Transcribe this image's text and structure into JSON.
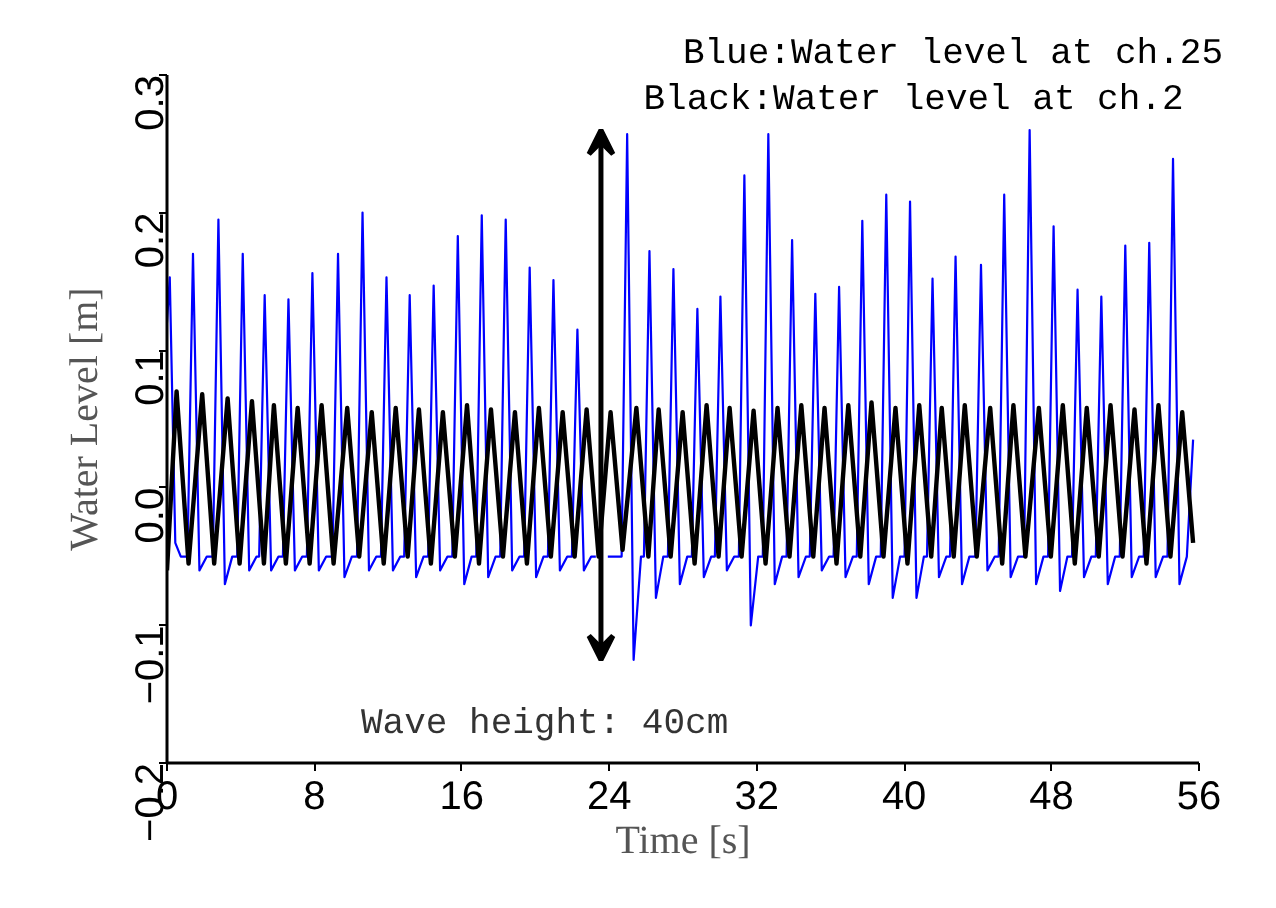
{
  "chart_data": {
    "type": "line",
    "xlabel": "Time [s]",
    "ylabel": "Water Level [m]",
    "annotations": [
      "Blue:Water level at ch.25",
      "Black:Water level at ch.2",
      "Wave height: 40cm"
    ],
    "xlim": [
      0,
      56
    ],
    "xticks": [
      0,
      8,
      16,
      24,
      32,
      40,
      48,
      56
    ],
    "ylim": [
      -0.2,
      0.3
    ],
    "yticks": [
      {
        "value": -0.2,
        "label": "−0.2"
      },
      {
        "value": -0.1,
        "label": "−0.1"
      },
      {
        "value": 0,
        "label": "0.0"
      },
      0.1,
      0.2,
      0.3
    ],
    "grid": false,
    "marker": "none",
    "line_style": "solid",
    "series": [
      {
        "color": "#0000ff",
        "x": [
          0,
          0.15,
          0.45,
          0.75,
          1.11,
          1.41,
          1.76,
          2.16,
          2.49,
          2.79,
          3.14,
          3.54,
          3.81,
          4.11,
          4.46,
          4.86,
          5.0,
          5.3,
          5.65,
          6.05,
          6.29,
          6.59,
          6.94,
          7.34,
          7.59,
          7.89,
          8.24,
          8.64,
          8.98,
          9.28,
          9.63,
          10.03,
          10.31,
          10.61,
          10.96,
          11.36,
          11.61,
          11.91,
          12.26,
          12.66,
          12.87,
          13.17,
          13.52,
          13.92,
          14.17,
          14.47,
          14.82,
          15.22,
          15.48,
          15.78,
          16.13,
          16.53,
          16.78,
          17.08,
          17.43,
          17.83,
          18.08,
          18.38,
          18.73,
          19.13,
          19.38,
          19.68,
          20.03,
          20.43,
          20.67,
          20.97,
          21.32,
          21.72,
          21.97,
          22.27,
          22.62,
          23.02,
          23.27,
          23.57,
          23.92,
          24.32,
          24.67,
          24.97,
          25.32,
          25.72,
          25.88,
          26.18,
          26.53,
          26.93,
          27.18,
          27.48,
          27.83,
          28.23,
          28.48,
          28.78,
          29.13,
          29.53,
          29.73,
          30.03,
          30.38,
          30.78,
          31.03,
          31.33,
          31.68,
          32.08,
          32.33,
          32.63,
          32.98,
          33.38,
          33.62,
          33.92,
          34.27,
          34.67,
          34.88,
          35.18,
          35.53,
          35.93,
          36.17,
          36.47,
          36.82,
          37.22,
          37.43,
          37.73,
          38.08,
          38.48,
          38.73,
          39.03,
          39.38,
          39.78,
          40.02,
          40.32,
          40.67,
          41.07,
          41.24,
          41.54,
          41.89,
          42.29,
          42.49,
          42.79,
          43.14,
          43.54,
          43.87,
          44.17,
          44.52,
          44.92,
          45.13,
          45.43,
          45.78,
          46.18,
          46.51,
          46.81,
          47.16,
          47.56,
          47.81,
          48.11,
          48.46,
          48.86,
          49.11,
          49.41,
          49.76,
          50.16,
          50.4,
          50.7,
          51.05,
          51.45,
          51.7,
          52.0,
          52.35,
          52.75,
          53.0,
          53.3,
          53.65,
          54.05,
          54.29,
          54.59,
          54.94,
          55.34,
          55.68
        ],
        "values": [
          0.12,
          0.153,
          -0.04,
          -0.05,
          -0.05,
          0.17,
          -0.06,
          -0.05,
          -0.05,
          0.195,
          -0.07,
          -0.05,
          -0.05,
          0.17,
          -0.06,
          -0.05,
          -0.05,
          0.14,
          -0.06,
          -0.05,
          -0.05,
          0.137,
          -0.06,
          -0.05,
          -0.05,
          0.156,
          -0.06,
          -0.05,
          -0.05,
          0.17,
          -0.065,
          -0.05,
          -0.05,
          0.2,
          -0.06,
          -0.05,
          -0.05,
          0.153,
          -0.06,
          -0.05,
          -0.05,
          0.14,
          -0.065,
          -0.05,
          -0.05,
          0.147,
          -0.06,
          -0.05,
          -0.05,
          0.183,
          -0.07,
          -0.05,
          -0.05,
          0.198,
          -0.065,
          -0.05,
          -0.05,
          0.195,
          -0.06,
          -0.05,
          -0.05,
          0.16,
          -0.065,
          -0.05,
          -0.05,
          0.151,
          -0.06,
          -0.05,
          -0.05,
          0.115,
          -0.06,
          -0.05,
          -0.05,
          null,
          -0.05,
          -0.05,
          -0.05,
          0.257,
          -0.125,
          -0.05,
          -0.05,
          0.172,
          -0.08,
          -0.05,
          -0.05,
          0.159,
          -0.07,
          -0.05,
          -0.05,
          0.13,
          -0.065,
          -0.05,
          -0.05,
          0.139,
          -0.06,
          -0.05,
          -0.05,
          0.227,
          -0.1,
          -0.05,
          -0.05,
          0.257,
          -0.07,
          -0.05,
          -0.05,
          0.18,
          -0.065,
          -0.05,
          -0.05,
          0.141,
          -0.06,
          -0.05,
          -0.05,
          0.146,
          -0.065,
          -0.05,
          -0.05,
          0.194,
          -0.07,
          -0.05,
          -0.05,
          0.213,
          -0.08,
          -0.05,
          -0.05,
          0.208,
          -0.08,
          -0.05,
          -0.05,
          0.152,
          -0.065,
          -0.05,
          -0.05,
          0.168,
          -0.07,
          -0.05,
          -0.05,
          0.162,
          -0.06,
          -0.05,
          -0.05,
          0.213,
          -0.065,
          -0.05,
          -0.05,
          0.26,
          -0.07,
          -0.05,
          -0.05,
          0.19,
          -0.075,
          -0.05,
          -0.05,
          0.144,
          -0.065,
          -0.05,
          -0.05,
          0.139,
          -0.07,
          -0.05,
          -0.05,
          0.176,
          -0.065,
          -0.05,
          -0.05,
          0.178,
          -0.065,
          -0.05,
          -0.05,
          0.239,
          -0.07,
          -0.05,
          0.035
        ]
      },
      {
        "color": "#000000",
        "x": [
          0,
          0.52,
          1.17,
          1.91,
          2.56,
          3.29,
          3.94,
          4.61,
          5.26,
          5.8,
          6.45,
          7.09,
          7.74,
          8.39,
          9.04,
          9.78,
          10.43,
          11.11,
          11.76,
          12.41,
          13.06,
          13.67,
          14.32,
          14.97,
          15.62,
          16.28,
          16.93,
          17.58,
          18.23,
          18.88,
          19.53,
          20.18,
          20.83,
          21.47,
          22.12,
          22.77,
          23.42,
          24.07,
          24.72,
          25.47,
          26.12,
          26.68,
          27.33,
          27.98,
          28.63,
          29.28,
          29.93,
          30.53,
          31.18,
          31.83,
          32.48,
          33.13,
          33.78,
          34.42,
          35.07,
          35.68,
          36.33,
          36.97,
          37.62,
          38.23,
          38.88,
          39.53,
          40.18,
          40.82,
          41.47,
          42.04,
          42.69,
          43.29,
          43.94,
          44.67,
          45.32,
          45.93,
          46.58,
          47.31,
          47.96,
          48.61,
          49.26,
          49.91,
          50.56,
          51.2,
          51.85,
          52.5,
          53.15,
          53.8,
          54.45,
          55.09,
          55.68
        ],
        "values": [
          -0.06,
          0.07,
          -0.055,
          0.068,
          -0.055,
          0.065,
          -0.055,
          0.063,
          -0.055,
          0.06,
          -0.055,
          0.058,
          -0.055,
          0.06,
          -0.055,
          0.058,
          -0.05,
          0.055,
          -0.055,
          0.058,
          -0.05,
          0.057,
          -0.055,
          0.055,
          -0.05,
          0.06,
          -0.055,
          0.057,
          -0.05,
          0.055,
          -0.055,
          0.058,
          -0.05,
          0.055,
          -0.05,
          0.057,
          -0.05,
          0.055,
          -0.045,
          0.058,
          -0.05,
          0.057,
          -0.05,
          0.055,
          -0.055,
          0.06,
          -0.05,
          0.058,
          -0.05,
          0.056,
          -0.055,
          0.058,
          -0.05,
          0.06,
          -0.05,
          0.058,
          -0.055,
          0.06,
          -0.05,
          0.062,
          -0.05,
          0.058,
          -0.055,
          0.06,
          -0.05,
          0.058,
          -0.05,
          0.06,
          -0.05,
          0.058,
          -0.055,
          0.06,
          -0.05,
          0.058,
          -0.05,
          0.06,
          -0.055,
          0.058,
          -0.05,
          0.06,
          -0.05,
          0.057,
          -0.055,
          0.06,
          -0.05,
          0.055,
          -0.04
        ]
      }
    ]
  }
}
